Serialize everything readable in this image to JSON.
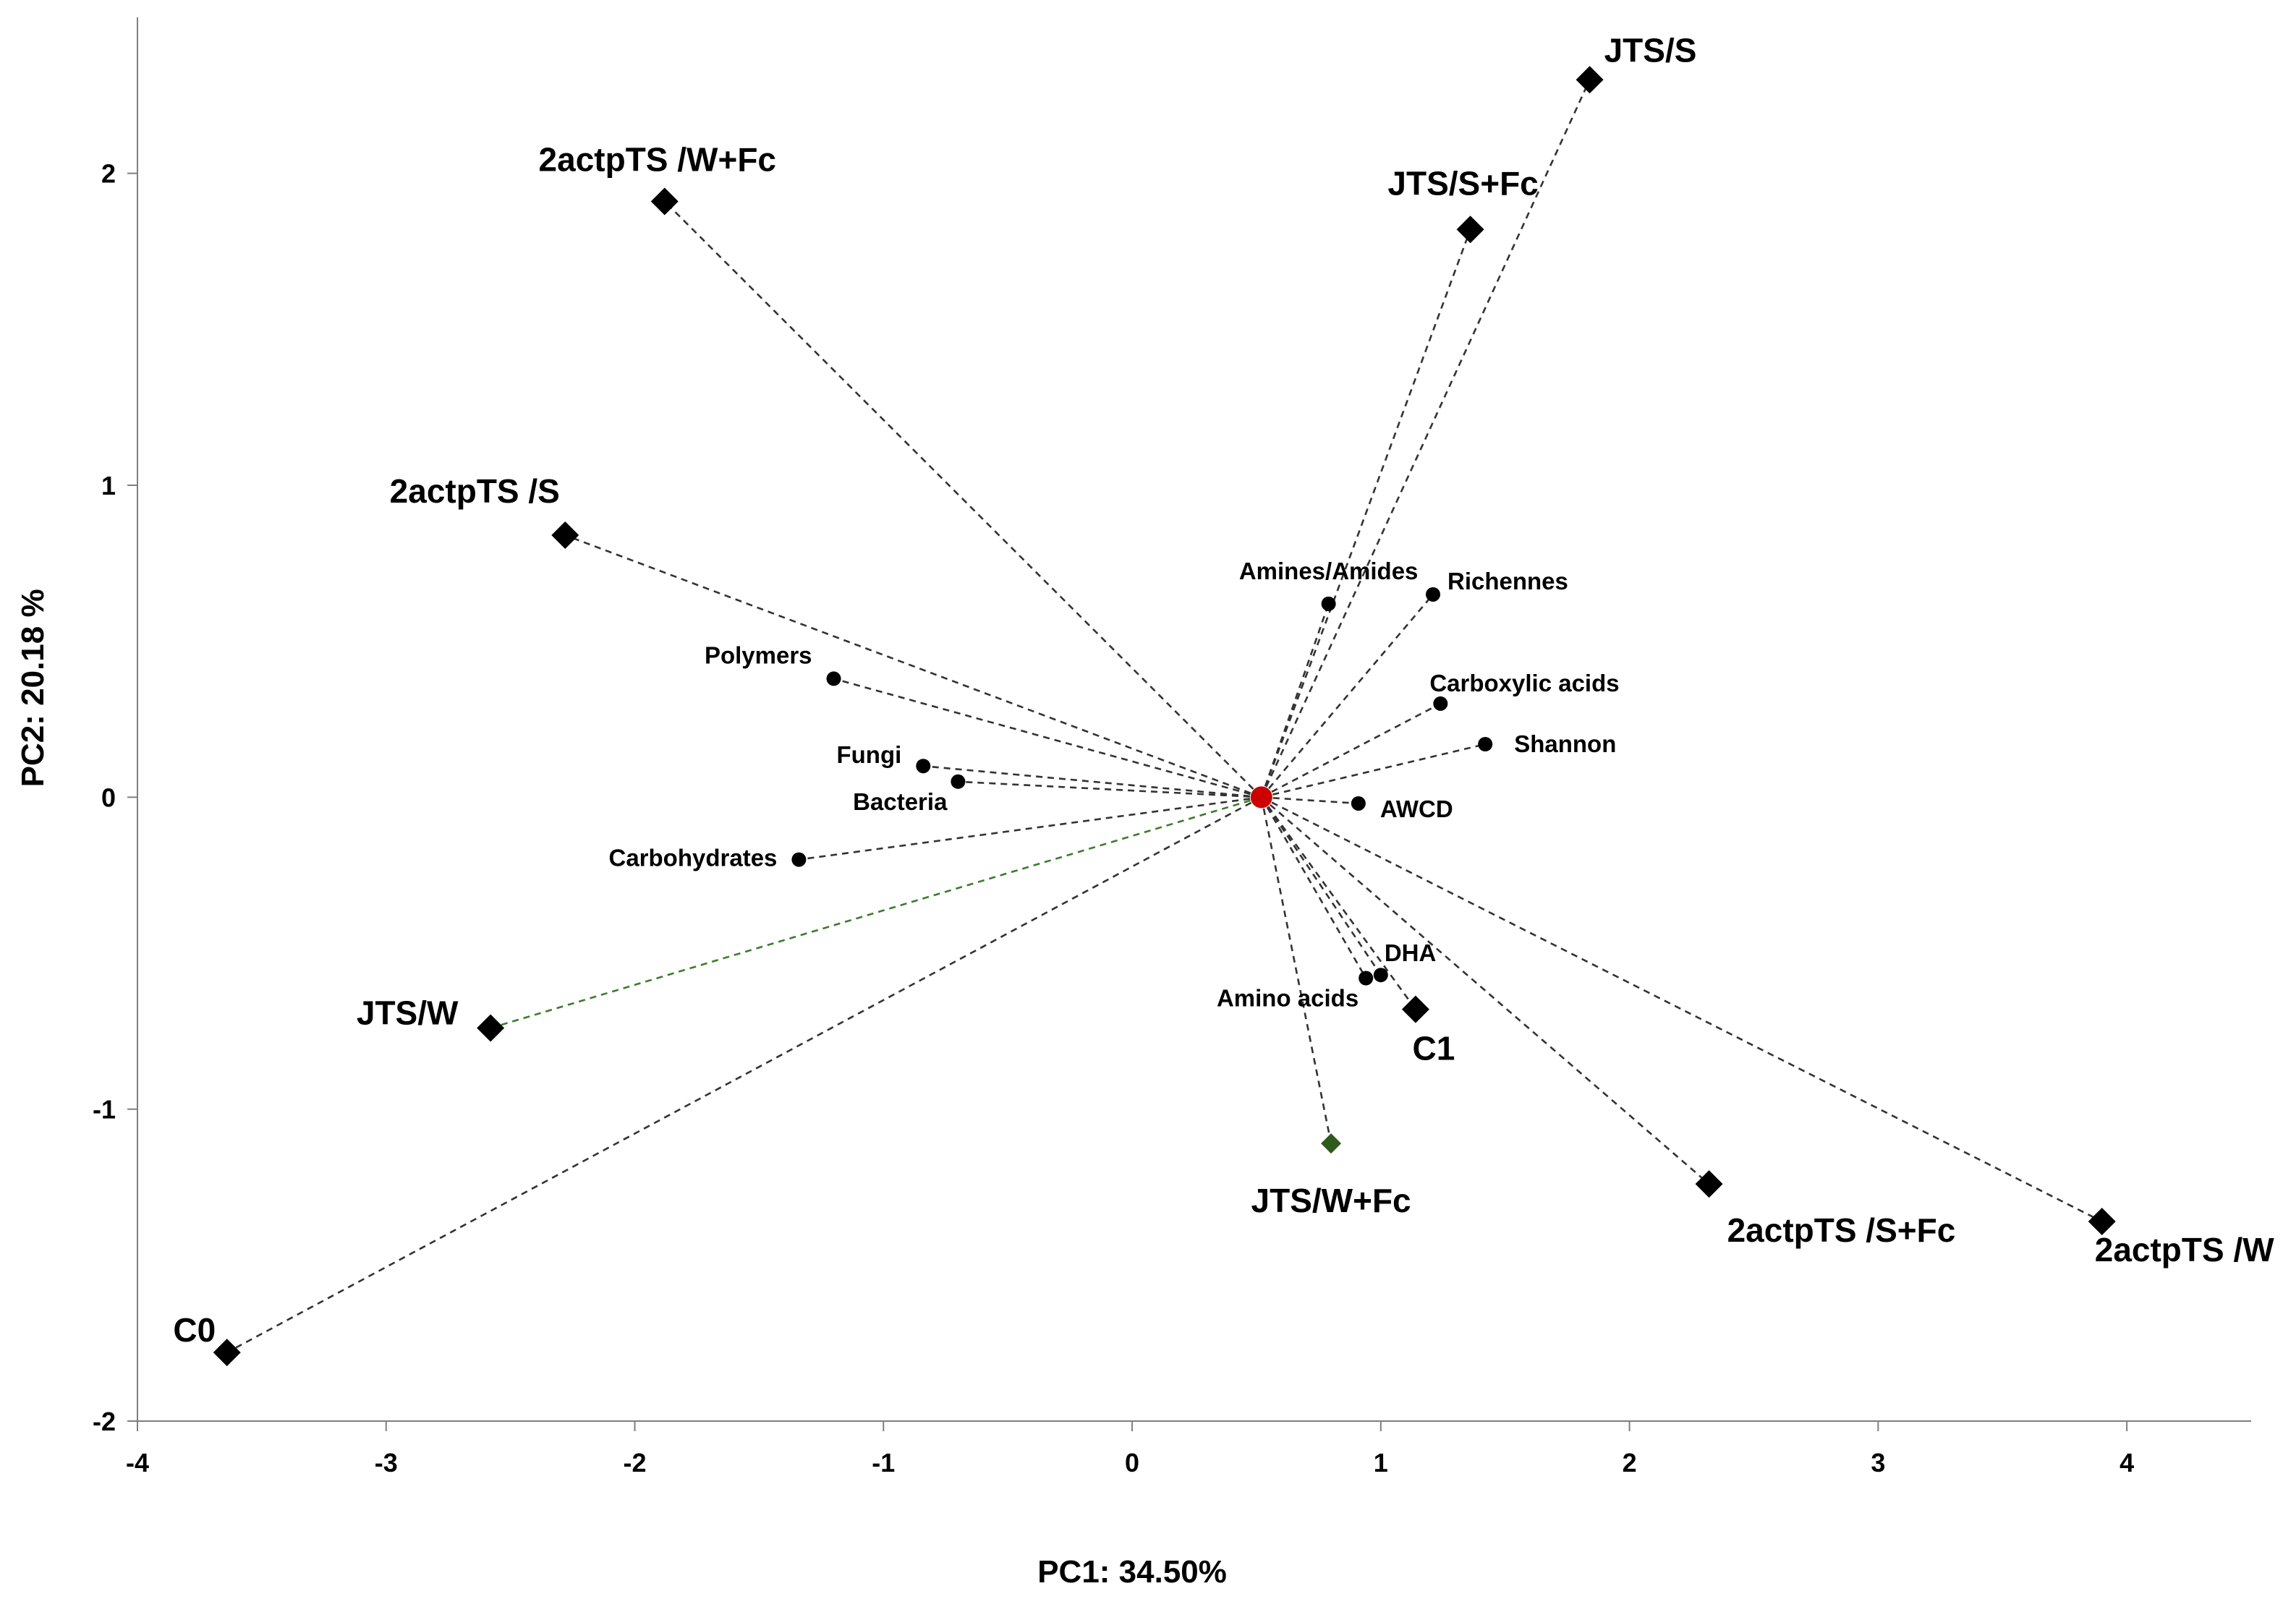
{
  "chart_data": {
    "type": "scatter",
    "title": "",
    "xlabel": "PC1: 34.50%",
    "ylabel": "PC2: 20.18 %",
    "xlim": [
      -4,
      4.5
    ],
    "ylim": [
      -2,
      2.5
    ],
    "xticks": [
      "-4",
      "-3",
      "-2",
      "-1",
      "0",
      "1",
      "2",
      "3",
      "4"
    ],
    "yticks": [
      "-2",
      "-1",
      "0",
      "1",
      "2"
    ],
    "grid": false,
    "center": {
      "x": 0.52,
      "y": 0.0,
      "color": "#cc0000"
    },
    "treatments": [
      {
        "name": "JTS/S",
        "x": 1.84,
        "y": 2.3
      },
      {
        "name": "2actpTS /W+Fc",
        "x": -1.88,
        "y": 1.91
      },
      {
        "name": "JTS/S+Fc",
        "x": 1.36,
        "y": 1.82
      },
      {
        "name": "2actpTS /S",
        "x": -2.28,
        "y": 0.84
      },
      {
        "name": "JTS/W",
        "x": -2.58,
        "y": -0.74
      },
      {
        "name": "C1",
        "x": 1.14,
        "y": -0.68
      },
      {
        "name": "JTS/W+Fc",
        "x": 0.8,
        "y": -1.11,
        "color": "#2e5a1c"
      },
      {
        "name": "2actpTS /S+Fc",
        "x": 2.32,
        "y": -1.24
      },
      {
        "name": "2actpTS /W",
        "x": 3.9,
        "y": -1.36
      },
      {
        "name": "C0",
        "x": -3.64,
        "y": -1.78
      }
    ],
    "variables": [
      {
        "name": "Amines/Amides",
        "x": 0.79,
        "y": 0.62
      },
      {
        "name": "Richennes",
        "x": 1.21,
        "y": 0.65
      },
      {
        "name": "Polymers",
        "x": -1.2,
        "y": 0.38
      },
      {
        "name": "Carboxylic acids",
        "x": 1.24,
        "y": 0.3
      },
      {
        "name": "Shannon",
        "x": 1.42,
        "y": 0.17
      },
      {
        "name": "Fungi",
        "x": -0.84,
        "y": 0.1
      },
      {
        "name": "Bacteria",
        "x": -0.7,
        "y": 0.05
      },
      {
        "name": "AWCD",
        "x": 0.91,
        "y": -0.02
      },
      {
        "name": "Carbohydrates",
        "x": -1.34,
        "y": -0.2
      },
      {
        "name": "DHA",
        "x": 1.0,
        "y": -0.57
      },
      {
        "name": "Amino acids",
        "x": 0.94,
        "y": -0.58
      }
    ]
  }
}
